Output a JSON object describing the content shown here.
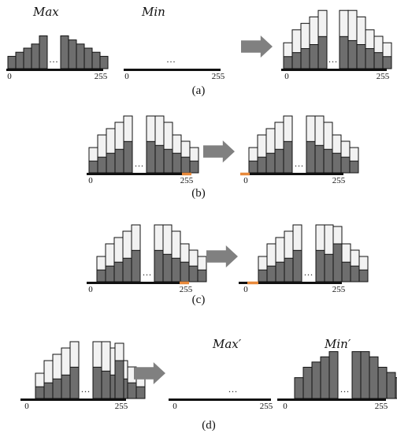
{
  "colors": {
    "max_fill": "#6e6e6e",
    "min_fill": "#f2f2f2",
    "stroke": "#111111",
    "arrow": "#808080",
    "highlight": "#e8893a"
  },
  "dots_text": "...",
  "tick_low": "0",
  "tick_high": "255",
  "panels": [
    {
      "caption": "(a)",
      "max_title": "Max",
      "min_title": "Min",
      "max_histogram": {
        "left_bins": [
          3,
          4,
          5,
          6,
          8
        ],
        "right_bins": [
          8,
          7,
          6,
          5,
          4,
          3
        ]
      },
      "min_histogram": {
        "left_bins": [
          4,
          6,
          7,
          8,
          9
        ],
        "right_bins": [
          9,
          9,
          8,
          6,
          5,
          4
        ]
      }
    },
    {
      "caption": "(b)",
      "shift": "first bin after 255 wraps to position 0"
    },
    {
      "caption": "(c)",
      "shift": "second shift of merged histogram"
    },
    {
      "caption": "(d)",
      "max_title": "Max′",
      "min_title": "Min′"
    }
  ]
}
